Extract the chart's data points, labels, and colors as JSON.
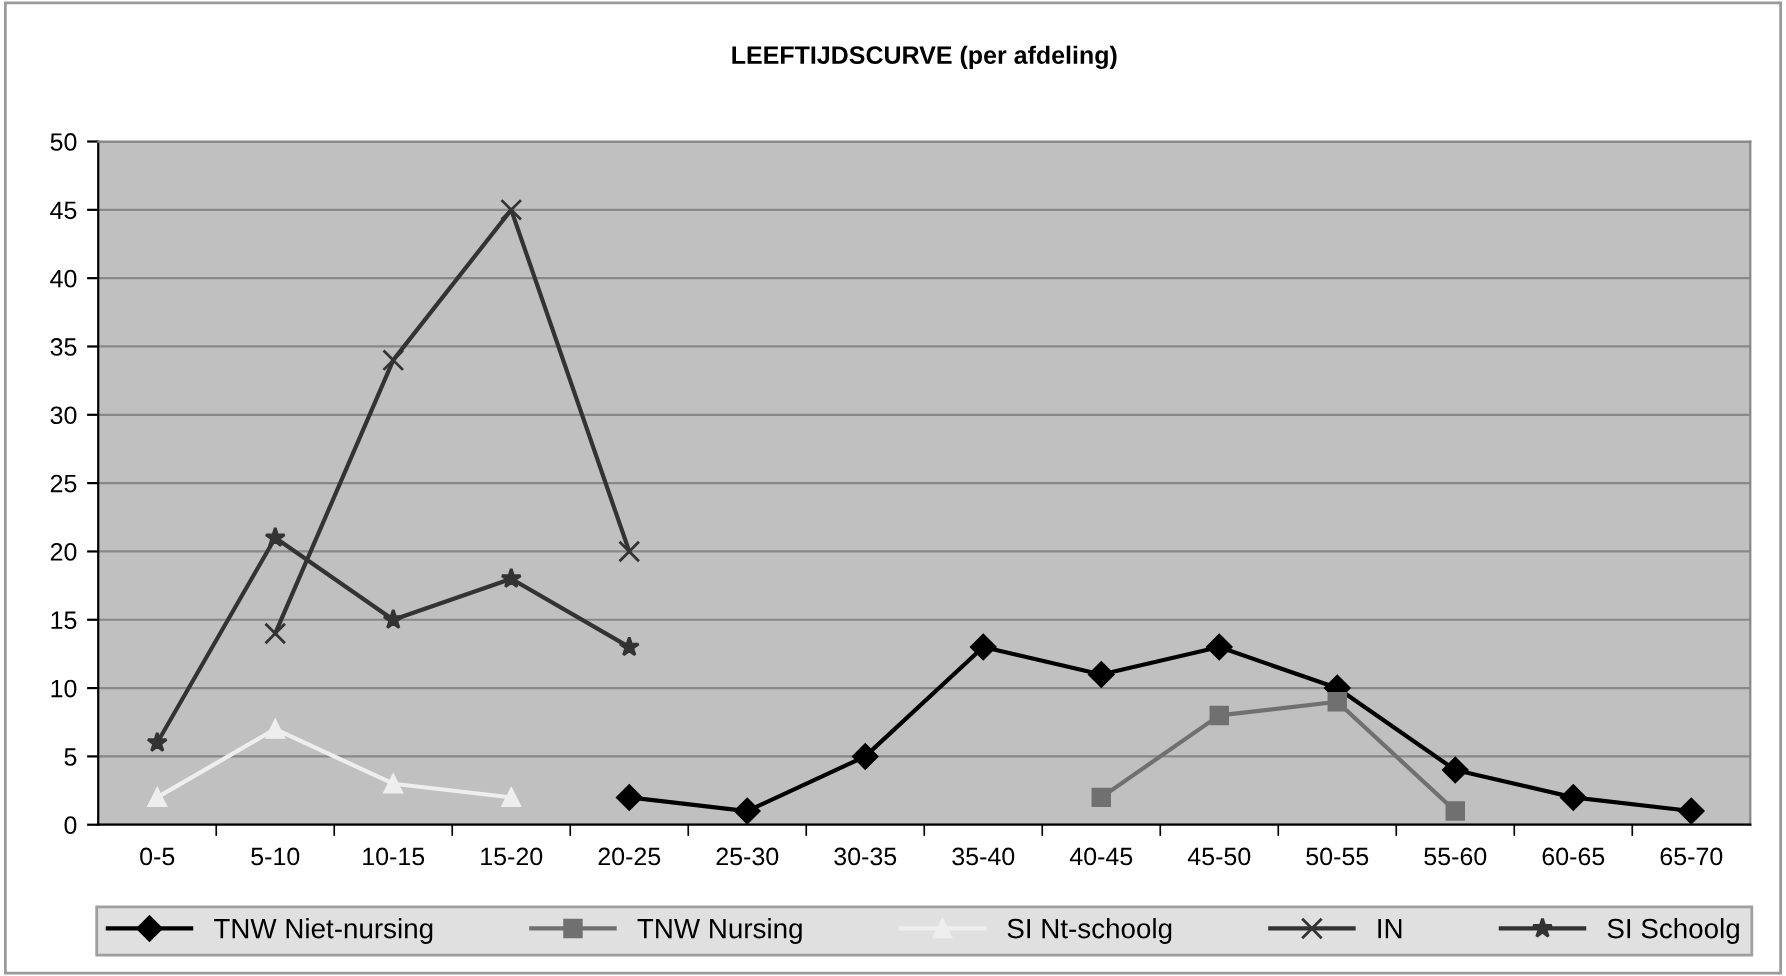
{
  "chart_data": {
    "type": "line",
    "title": "LEEFTIJDSCURVE (per afdeling)",
    "categories": [
      "0-5",
      "5-10",
      "10-15",
      "15-20",
      "20-25",
      "25-30",
      "30-35",
      "35-40",
      "40-45",
      "45-50",
      "50-55",
      "55-60",
      "60-65",
      "65-70"
    ],
    "series": [
      {
        "name": "TNW Niet-nursing",
        "color": "#000000",
        "marker": "diamond",
        "values": [
          null,
          null,
          null,
          null,
          2,
          1,
          5,
          13,
          11,
          13,
          10,
          4,
          2,
          1
        ]
      },
      {
        "name": "TNW Nursing",
        "color": "#707070",
        "marker": "square",
        "values": [
          null,
          null,
          null,
          null,
          null,
          null,
          null,
          null,
          2,
          8,
          9,
          1,
          null,
          null
        ]
      },
      {
        "name": "SI Nt-schoolg",
        "color": "#eeeeee",
        "marker": "triangle",
        "values": [
          2,
          7,
          3,
          2,
          null,
          null,
          null,
          null,
          null,
          null,
          null,
          null,
          null,
          null
        ]
      },
      {
        "name": "IN",
        "color": "#333333",
        "marker": "cross",
        "values": [
          null,
          14,
          34,
          45,
          20,
          null,
          null,
          null,
          null,
          null,
          null,
          null,
          null,
          null
        ]
      },
      {
        "name": "SI Schoolg",
        "color": "#333333",
        "marker": "star",
        "values": [
          6,
          21,
          15,
          18,
          13,
          null,
          null,
          null,
          null,
          null,
          null,
          null,
          null,
          null
        ]
      }
    ],
    "ylim": [
      0,
      50
    ],
    "yticks": [
      0,
      5,
      10,
      15,
      20,
      25,
      30,
      35,
      40,
      45,
      50
    ],
    "grid": "y",
    "legend": "bottom"
  }
}
